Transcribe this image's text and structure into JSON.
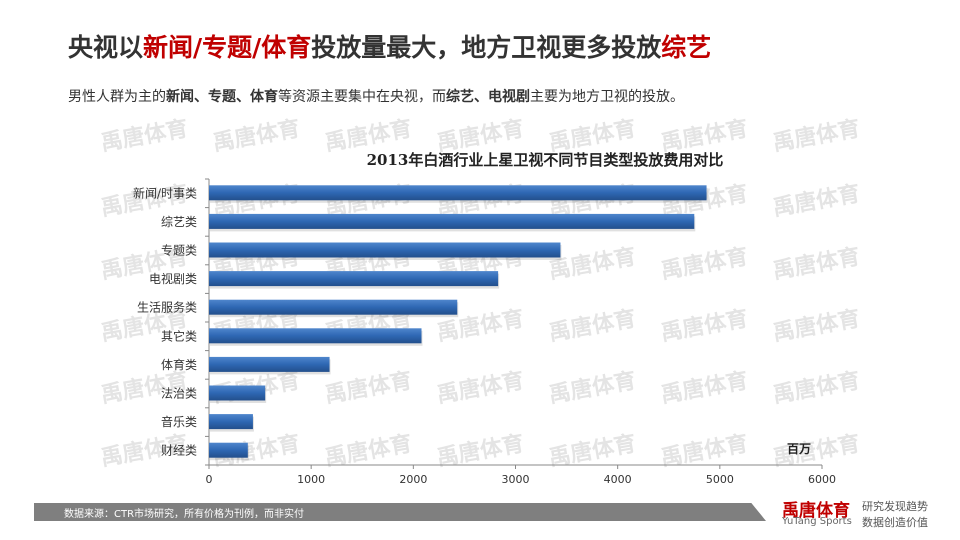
{
  "headline": {
    "parts": [
      "央视以",
      "新闻/专题/体育",
      "投放量最大，地方卫视更多投放",
      "综艺"
    ]
  },
  "subline": {
    "parts": [
      "男性人群为主的",
      "新闻、专题、体育",
      "等资源主要集中在央视，而",
      "综艺、电视剧",
      "主要为地方卫视的投放。"
    ]
  },
  "watermark": "禹唐体育",
  "chart_data": {
    "type": "bar",
    "orientation": "horizontal",
    "title": "2013年白酒行业上星卫视不同节目类型投放费用对比",
    "categories": [
      "新闻/时事类",
      "综艺类",
      "专题类",
      "电视剧类",
      "生活服务类",
      "其它类",
      "体育类",
      "法治类",
      "音乐类",
      "财经类"
    ],
    "values": [
      4870,
      4750,
      3440,
      2830,
      2430,
      2080,
      1180,
      550,
      430,
      380
    ],
    "xlabel": "百万",
    "ylabel": "",
    "xlim": [
      0,
      6000
    ],
    "xticks": [
      "0",
      "1000",
      "2000",
      "3000",
      "4000",
      "5000",
      "6000"
    ],
    "grid": false,
    "bar_color": "#2e67b3"
  },
  "footer": {
    "source": "数据来源：CTR市场研究，所有价格为刊例，而非实付",
    "brand": "禹唐体育",
    "brand_en": "YuTang Sports",
    "slogan1": "研究发现趋势",
    "slogan2": "数据创造价值"
  }
}
